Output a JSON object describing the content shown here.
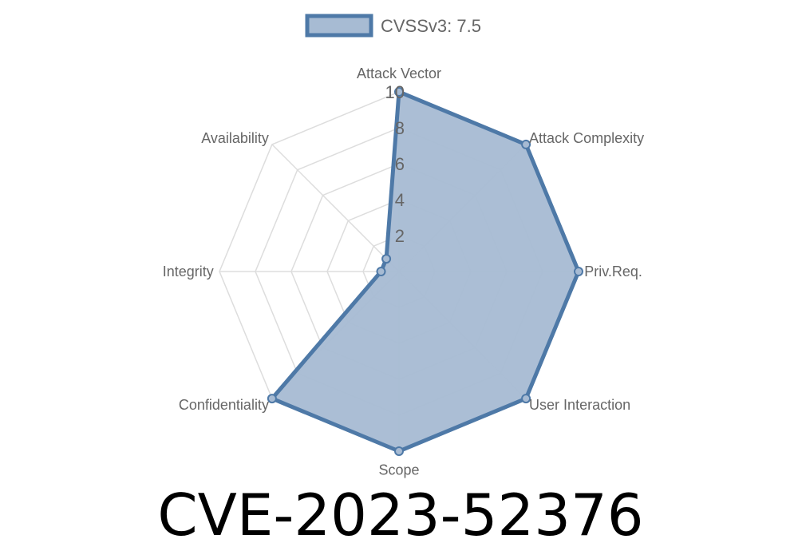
{
  "chart_data": {
    "type": "radar",
    "title": "CVE-2023-52376",
    "axes": [
      "Attack Vector",
      "Attack Complexity",
      "Priv.Req.",
      "User Interaction",
      "Scope",
      "Confidentiality",
      "Integrity",
      "Availability"
    ],
    "ticks": [
      "2",
      "4",
      "6",
      "8",
      "10"
    ],
    "range": [
      0,
      10
    ],
    "grid": true,
    "legend_position": "top",
    "series": [
      {
        "name": "CVSSv3: 7.5",
        "values": [
          10,
          10,
          10,
          10,
          10,
          10,
          1,
          1
        ],
        "color": "#4e79a7",
        "fill": "#a7bbd3"
      }
    ]
  }
}
